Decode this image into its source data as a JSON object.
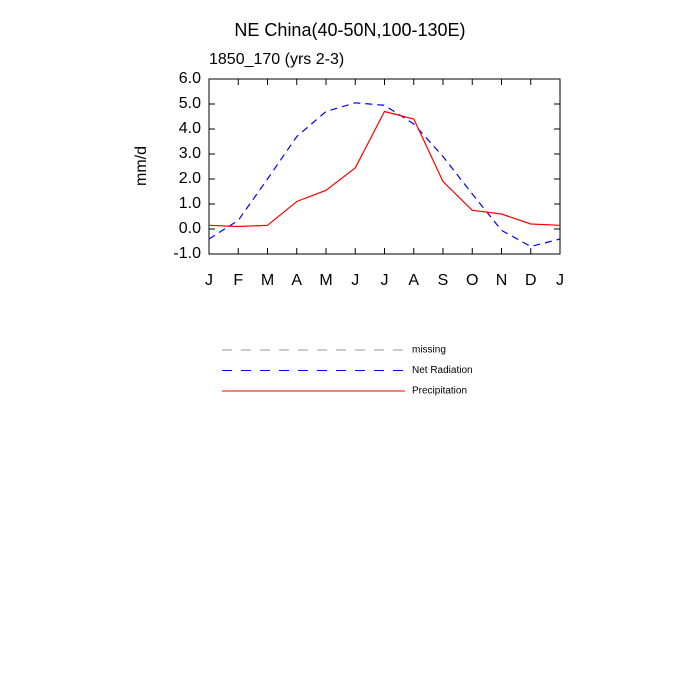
{
  "chart_data": {
    "type": "line",
    "title": "NE China(40-50N,100-130E)",
    "subtitle": "1850_170 (yrs 2-3)",
    "y_label": "mm/d",
    "categories": [
      "J",
      "F",
      "M",
      "A",
      "M",
      "J",
      "J",
      "A",
      "S",
      "O",
      "N",
      "D",
      "J"
    ],
    "ylim": [
      -1,
      6
    ],
    "yticks": [
      {
        "value": 6,
        "label": "6.0"
      },
      {
        "value": 5,
        "label": "5.0"
      },
      {
        "value": 4,
        "label": "4.0"
      },
      {
        "value": 3,
        "label": "3.0"
      },
      {
        "value": 2,
        "label": "2.0"
      },
      {
        "value": 1,
        "label": "1.0"
      },
      {
        "value": 0,
        "label": "0.0"
      },
      {
        "value": -1,
        "label": "-1.0"
      }
    ],
    "series": [
      {
        "name": "missing",
        "color": "#999999",
        "dashed": true,
        "values": [
          null,
          null,
          null,
          null,
          null,
          null,
          null,
          null,
          null,
          null,
          null,
          null,
          null
        ]
      },
      {
        "name": "Net Radiation",
        "color": "#0000ff",
        "dashed": true,
        "values": [
          -0.4,
          0.35,
          2.0,
          3.7,
          4.7,
          5.05,
          4.95,
          4.2,
          2.9,
          1.4,
          -0.05,
          -0.7,
          -0.4
        ]
      },
      {
        "name": "Precipitation",
        "color": "#ff0000",
        "dashed": false,
        "values": [
          0.15,
          0.1,
          0.15,
          1.1,
          1.55,
          2.45,
          4.7,
          4.4,
          1.9,
          0.75,
          0.6,
          0.2,
          0.15
        ]
      }
    ]
  }
}
